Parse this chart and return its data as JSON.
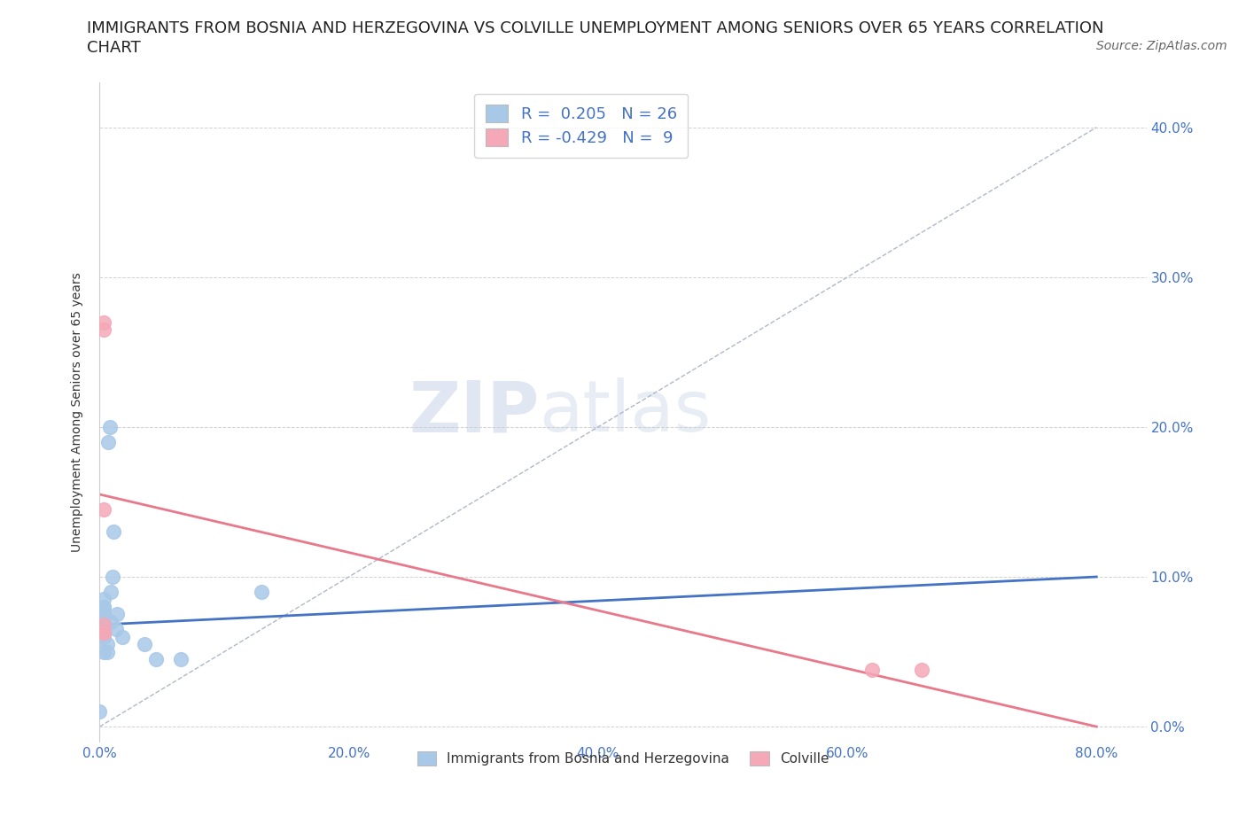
{
  "title_line1": "IMMIGRANTS FROM BOSNIA AND HERZEGOVINA VS COLVILLE UNEMPLOYMENT AMONG SENIORS OVER 65 YEARS CORRELATION",
  "title_line2": "CHART",
  "source": "Source: ZipAtlas.com",
  "xlabel_bottom": [
    "0.0%",
    "20.0%",
    "40.0%",
    "60.0%",
    "80.0%"
  ],
  "ylabel_right": [
    "0.0%",
    "10.0%",
    "20.0%",
    "30.0%",
    "40.0%"
  ],
  "xlim": [
    0.0,
    0.84
  ],
  "ylim": [
    -0.01,
    0.43
  ],
  "blue_scatter_x": [
    0.003,
    0.003,
    0.003,
    0.003,
    0.003,
    0.003,
    0.003,
    0.003,
    0.003,
    0.003,
    0.006,
    0.006,
    0.007,
    0.008,
    0.009,
    0.009,
    0.01,
    0.011,
    0.013,
    0.014,
    0.018,
    0.036,
    0.045,
    0.065,
    0.13,
    0.0
  ],
  "blue_scatter_y": [
    0.05,
    0.06,
    0.065,
    0.07,
    0.07,
    0.075,
    0.075,
    0.08,
    0.08,
    0.085,
    0.05,
    0.055,
    0.19,
    0.2,
    0.07,
    0.09,
    0.1,
    0.13,
    0.065,
    0.075,
    0.06,
    0.055,
    0.045,
    0.045,
    0.09,
    0.01
  ],
  "pink_scatter_x": [
    0.003,
    0.003,
    0.003,
    0.003,
    0.003,
    0.003,
    0.003,
    0.62,
    0.66
  ],
  "pink_scatter_y": [
    0.145,
    0.265,
    0.27,
    0.068,
    0.063,
    0.063,
    0.063,
    0.038,
    0.038
  ],
  "blue_line_x": [
    0.0,
    0.8
  ],
  "blue_line_y": [
    0.068,
    0.1
  ],
  "pink_line_x": [
    0.0,
    0.8
  ],
  "pink_line_y": [
    0.155,
    0.0
  ],
  "diag_line_x": [
    0.0,
    0.8
  ],
  "diag_line_y": [
    0.0,
    0.4
  ],
  "blue_color": "#a8c8e8",
  "pink_color": "#f4a8b8",
  "blue_line_color": "#4472c4",
  "pink_line_color": "#e8788a",
  "trend_line_color": "#b0b8c8",
  "R_blue": 0.205,
  "N_blue": 26,
  "R_pink": -0.429,
  "N_pink": 9,
  "legend_labels": [
    "Immigrants from Bosnia and Herzegovina",
    "Colville"
  ],
  "watermark_zip": "ZIP",
  "watermark_atlas": "atlas",
  "title_fontsize": 13,
  "label_fontsize": 10,
  "source_fontsize": 10,
  "tick_fontsize": 11,
  "legend_fontsize": 13
}
